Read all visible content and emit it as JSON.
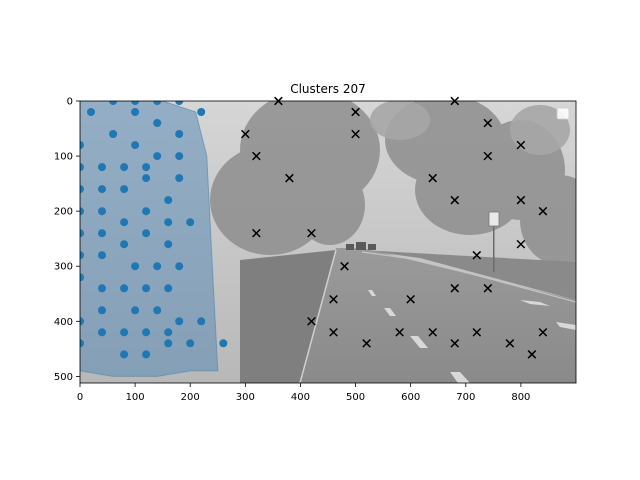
{
  "chart_data": {
    "type": "scatter",
    "title": "Clusters 207",
    "xlabel": "",
    "ylabel": "",
    "xlim": [
      0,
      900
    ],
    "ylim": [
      512,
      0
    ],
    "xticks": [
      0,
      100,
      200,
      300,
      400,
      500,
      600,
      700,
      800
    ],
    "yticks": [
      0,
      100,
      200,
      300,
      400,
      500
    ],
    "y_inverted": true,
    "grid": false,
    "legend": "top-right",
    "background": "grayscale street photograph (tree-lined road with cars)",
    "region_color": "#4f86b4",
    "colors": {
      "dots": "#1f77b4",
      "crosses": "#000000"
    },
    "region_polygon": [
      [
        0,
        0
      ],
      [
        150,
        0
      ],
      [
        210,
        20
      ],
      [
        230,
        100
      ],
      [
        240,
        300
      ],
      [
        250,
        490
      ],
      [
        200,
        490
      ],
      [
        140,
        500
      ],
      [
        60,
        500
      ],
      [
        0,
        490
      ]
    ],
    "series": [
      {
        "marker": "circle",
        "points": [
          [
            60,
            0
          ],
          [
            100,
            0
          ],
          [
            140,
            0
          ],
          [
            180,
            0
          ],
          [
            20,
            20
          ],
          [
            100,
            20
          ],
          [
            220,
            20
          ],
          [
            140,
            40
          ],
          [
            60,
            60
          ],
          [
            180,
            60
          ],
          [
            0,
            80
          ],
          [
            100,
            80
          ],
          [
            140,
            100
          ],
          [
            180,
            100
          ],
          [
            0,
            120
          ],
          [
            40,
            120
          ],
          [
            80,
            120
          ],
          [
            120,
            120
          ],
          [
            120,
            140
          ],
          [
            180,
            140
          ],
          [
            0,
            160
          ],
          [
            40,
            160
          ],
          [
            80,
            160
          ],
          [
            160,
            180
          ],
          [
            0,
            200
          ],
          [
            40,
            200
          ],
          [
            120,
            200
          ],
          [
            80,
            220
          ],
          [
            160,
            220
          ],
          [
            200,
            220
          ],
          [
            0,
            240
          ],
          [
            40,
            240
          ],
          [
            120,
            240
          ],
          [
            80,
            260
          ],
          [
            160,
            260
          ],
          [
            0,
            280
          ],
          [
            40,
            280
          ],
          [
            100,
            300
          ],
          [
            140,
            300
          ],
          [
            180,
            300
          ],
          [
            0,
            320
          ],
          [
            40,
            340
          ],
          [
            80,
            340
          ],
          [
            120,
            340
          ],
          [
            160,
            340
          ],
          [
            40,
            380
          ],
          [
            100,
            380
          ],
          [
            140,
            380
          ],
          [
            0,
            400
          ],
          [
            180,
            400
          ],
          [
            220,
            400
          ],
          [
            40,
            420
          ],
          [
            80,
            420
          ],
          [
            120,
            420
          ],
          [
            160,
            420
          ],
          [
            0,
            440
          ],
          [
            160,
            440
          ],
          [
            200,
            440
          ],
          [
            260,
            440
          ],
          [
            80,
            460
          ],
          [
            120,
            460
          ]
        ]
      },
      {
        "marker": "x",
        "points": [
          [
            360,
            0
          ],
          [
            680,
            0
          ],
          [
            500,
            20
          ],
          [
            740,
            40
          ],
          [
            300,
            60
          ],
          [
            500,
            60
          ],
          [
            800,
            80
          ],
          [
            320,
            100
          ],
          [
            740,
            100
          ],
          [
            380,
            140
          ],
          [
            640,
            140
          ],
          [
            680,
            180
          ],
          [
            800,
            180
          ],
          [
            840,
            200
          ],
          [
            320,
            240
          ],
          [
            420,
            240
          ],
          [
            800,
            260
          ],
          [
            720,
            280
          ],
          [
            480,
            300
          ],
          [
            680,
            340
          ],
          [
            740,
            340
          ],
          [
            460,
            360
          ],
          [
            600,
            360
          ],
          [
            420,
            400
          ],
          [
            460,
            420
          ],
          [
            580,
            420
          ],
          [
            640,
            420
          ],
          [
            720,
            420
          ],
          [
            840,
            420
          ],
          [
            520,
            440
          ],
          [
            680,
            440
          ],
          [
            780,
            440
          ],
          [
            820,
            460
          ]
        ]
      }
    ]
  }
}
